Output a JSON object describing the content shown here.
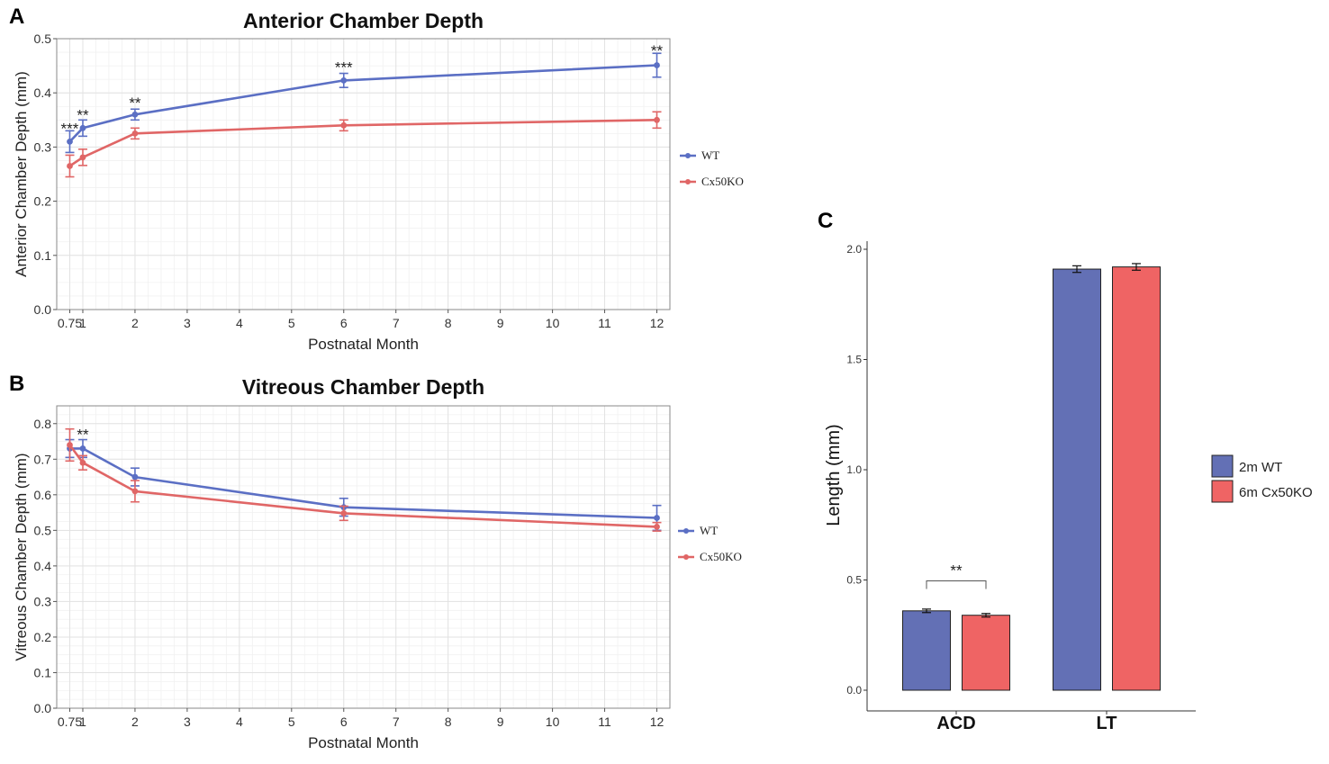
{
  "chart_data": [
    {
      "id": "A",
      "type": "line",
      "panel_letter": "A",
      "title": "Anterior Chamber Depth",
      "xlabel": "Postnatal Month",
      "ylabel": "Anterior Chamber Depth (mm)",
      "xlim": [
        0.5,
        12.25
      ],
      "ylim": [
        0,
        0.5
      ],
      "x_ticks": [
        0.75,
        1,
        2,
        3,
        4,
        5,
        6,
        7,
        8,
        9,
        10,
        11,
        12
      ],
      "x_tick_labels": [
        "0.75",
        "1",
        "2",
        "3",
        "4",
        "5",
        "6",
        "7",
        "8",
        "9",
        "10",
        "11",
        "12"
      ],
      "y_ticks": [
        0,
        0.1,
        0.2,
        0.3,
        0.4,
        0.5
      ],
      "y_tick_labels": [
        "0.0",
        "0.1",
        "0.2",
        "0.3",
        "0.4",
        "0.5"
      ],
      "grid": true,
      "legend_position": "right",
      "series": [
        {
          "name": "WT",
          "color": "#5b6fc4",
          "x": [
            0.75,
            1,
            2,
            6,
            12
          ],
          "values": [
            0.31,
            0.335,
            0.36,
            0.423,
            0.451
          ],
          "errors": [
            0.02,
            0.015,
            0.01,
            0.013,
            0.022
          ]
        },
        {
          "name": "Cx50KO",
          "color": "#e06666",
          "x": [
            0.75,
            1,
            2,
            6,
            12
          ],
          "values": [
            0.265,
            0.281,
            0.325,
            0.34,
            0.35
          ],
          "errors": [
            0.02,
            0.015,
            0.01,
            0.01,
            0.015
          ]
        }
      ],
      "annotations": [
        {
          "text": "***",
          "x": 0.75,
          "y": 0.335
        },
        {
          "text": "**",
          "x": 1,
          "y": 0.36
        },
        {
          "text": "**",
          "x": 2,
          "y": 0.382
        },
        {
          "text": "***",
          "x": 6,
          "y": 0.448
        },
        {
          "text": "**",
          "x": 12,
          "y": 0.478
        }
      ]
    },
    {
      "id": "B",
      "type": "line",
      "panel_letter": "B",
      "title": "Vitreous Chamber Depth",
      "xlabel": "Postnatal Month",
      "ylabel": "Vitreous Chamber Depth (mm)",
      "xlim": [
        0.5,
        12.25
      ],
      "ylim": [
        0,
        0.85
      ],
      "x_ticks": [
        0.75,
        1,
        2,
        3,
        4,
        5,
        6,
        7,
        8,
        9,
        10,
        11,
        12
      ],
      "x_tick_labels": [
        "0.75",
        "1",
        "2",
        "3",
        "4",
        "5",
        "6",
        "7",
        "8",
        "9",
        "10",
        "11",
        "12"
      ],
      "y_ticks": [
        0,
        0.1,
        0.2,
        0.3,
        0.4,
        0.5,
        0.6,
        0.7,
        0.8
      ],
      "y_tick_labels": [
        "0.0",
        "0.1",
        "0.2",
        "0.3",
        "0.4",
        "0.5",
        "0.6",
        "0.7",
        "0.8"
      ],
      "grid": true,
      "legend_position": "right",
      "series": [
        {
          "name": "WT",
          "color": "#5b6fc4",
          "x": [
            0.75,
            1,
            2,
            6,
            12
          ],
          "values": [
            0.73,
            0.73,
            0.65,
            0.565,
            0.535
          ],
          "errors": [
            0.025,
            0.025,
            0.025,
            0.025,
            0.035
          ]
        },
        {
          "name": "Cx50KO",
          "color": "#e06666",
          "x": [
            0.75,
            1,
            2,
            6,
            12
          ],
          "values": [
            0.74,
            0.69,
            0.61,
            0.548,
            0.51
          ],
          "errors": [
            0.045,
            0.02,
            0.03,
            0.02,
            0.012
          ]
        }
      ],
      "annotations": [
        {
          "text": "**",
          "x": 1,
          "y": 0.77
        }
      ]
    },
    {
      "id": "C",
      "type": "bar",
      "panel_letter": "C",
      "ylabel": "Length (mm)",
      "ylim": [
        0,
        2.0
      ],
      "y_ticks": [
        0,
        0.5,
        1.0,
        1.5,
        2.0
      ],
      "y_tick_labels": [
        "0.0",
        "0.5",
        "1.0",
        "1.5",
        "2.0"
      ],
      "categories": [
        "ACD",
        "LT"
      ],
      "grid": false,
      "legend_position": "right",
      "series": [
        {
          "name": "2m WT",
          "color": "#6370b5",
          "values": [
            0.36,
            1.91
          ],
          "errors": [
            0.008,
            0.015
          ]
        },
        {
          "name": "6m Cx50KO",
          "color": "#ef6464",
          "values": [
            0.34,
            1.92
          ],
          "errors": [
            0.008,
            0.015
          ]
        }
      ],
      "annotations": [
        {
          "text": "**",
          "category": "ACD",
          "y": 0.5
        }
      ]
    }
  ]
}
